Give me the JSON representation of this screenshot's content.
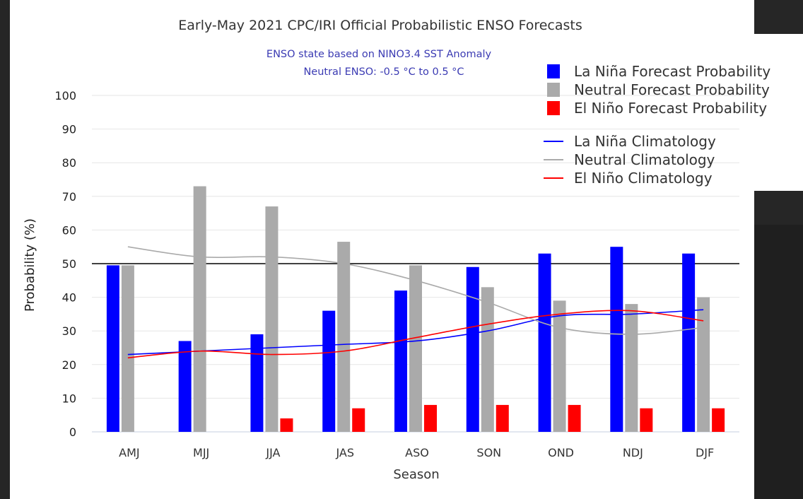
{
  "chart_data": {
    "type": "bar",
    "title": "Early-May 2021 CPC/IRI Official Probabilistic ENSO Forecasts",
    "subtitle": [
      "ENSO state based on NINO3.4 SST Anomaly",
      "Neutral ENSO: -0.5 °C to 0.5 °C"
    ],
    "xlabel": "Season",
    "ylabel": "Probability (%)",
    "ylim": [
      0,
      100
    ],
    "yticks": [
      "0",
      "10",
      "20",
      "30",
      "40",
      "50",
      "60",
      "70",
      "80",
      "90",
      "100"
    ],
    "categories": [
      "AMJ",
      "MJJ",
      "JJA",
      "JAS",
      "ASO",
      "SON",
      "OND",
      "NDJ",
      "DJF"
    ],
    "reference_line": 50,
    "grid": true,
    "legend_position": "top-right",
    "series": [
      {
        "name": "La Niña Forecast Probability",
        "kind": "bar",
        "color": "#0000ff",
        "values": [
          49.5,
          27,
          29,
          36,
          42,
          49,
          53,
          55,
          53
        ]
      },
      {
        "name": "Neutral Forecast Probability",
        "kind": "bar",
        "color": "#aaaaaa",
        "values": [
          49.5,
          73,
          67,
          56.5,
          49.5,
          43,
          39,
          38,
          40
        ]
      },
      {
        "name": "El Niño Forecast Probability",
        "kind": "bar",
        "color": "#ff0000",
        "values": [
          0,
          0,
          4,
          7,
          8,
          8,
          8,
          7,
          7
        ]
      },
      {
        "name": "La Niña Climatology",
        "kind": "line",
        "color": "#0000ff",
        "values": [
          23,
          24,
          25,
          26,
          27,
          30,
          34.5,
          35,
          36.3
        ]
      },
      {
        "name": "Neutral Climatology",
        "kind": "line",
        "color": "#aaaaaa",
        "values": [
          55,
          52,
          52,
          50,
          45,
          38.5,
          31,
          29,
          31
        ]
      },
      {
        "name": "El Niño Climatology",
        "kind": "line",
        "color": "#ff0000",
        "values": [
          22,
          24,
          23,
          24,
          28,
          32,
          35,
          36,
          33
        ]
      }
    ]
  }
}
